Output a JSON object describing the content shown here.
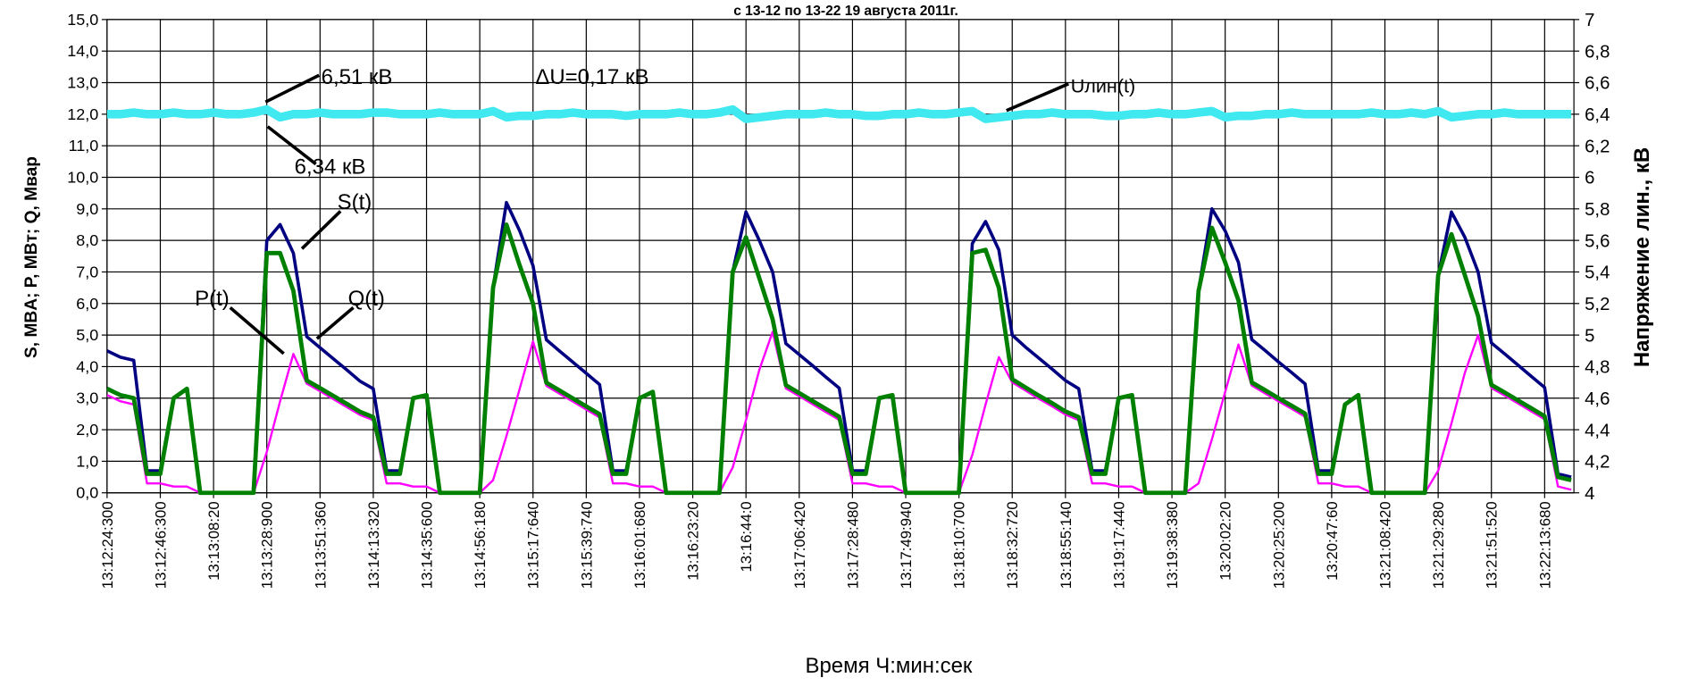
{
  "chart_data": {
    "type": "line",
    "title": "с 13-12 по 13-22 19 августа  2011г.",
    "xlabel": "Время Ч:мин:сек",
    "ylabel": "S, MBA;  P, MBт; Q, Mвар",
    "y2label": "Напряжение лин., кВ",
    "annotations": [
      "6,51 кВ",
      "6,34 кВ",
      "ΔU=0,17 кВ",
      "Uлин(t)",
      "S(t)",
      "P(t)",
      "Q(t)"
    ],
    "grid": true,
    "categories": [
      "13:12:24:300",
      null,
      null,
      null,
      "13:12:46:300",
      null,
      null,
      null,
      "13:13:08:20",
      null,
      null,
      null,
      "13:13:28:900",
      null,
      null,
      null,
      "13:13:51:360",
      null,
      null,
      null,
      "13:14:13:320",
      null,
      null,
      null,
      "13:14:35:600",
      null,
      null,
      null,
      "13:14:56:180",
      null,
      null,
      null,
      "13:15:17:640",
      null,
      null,
      null,
      "13:15:39:740",
      null,
      null,
      null,
      "13:16:01:680",
      null,
      null,
      null,
      "13:16:23:20",
      null,
      null,
      null,
      "13:16:44:0",
      null,
      null,
      null,
      "13:17:06:420",
      null,
      null,
      null,
      "13:17:28:480",
      null,
      null,
      null,
      "13:17:49:940",
      null,
      null,
      null,
      "13:18:10:700",
      null,
      null,
      null,
      "13:18:32:720",
      null,
      null,
      null,
      "13:18:55:140",
      null,
      null,
      null,
      "13:19:17:440",
      null,
      null,
      null,
      "13:19:38:380",
      null,
      null,
      null,
      "13:20:02:20",
      null,
      null,
      null,
      "13:20:25:200",
      null,
      null,
      null,
      "13:20:47:60",
      null,
      null,
      null,
      "13:21:08:420",
      null,
      null,
      null,
      "13:21:29:280",
      null,
      null,
      null,
      "13:21:51:520",
      null,
      null,
      null,
      "13:22:13:680",
      null,
      null
    ],
    "ylim": [
      0,
      15
    ],
    "yticks": [
      {
        "value": 0,
        "label": "0,0"
      },
      {
        "value": 1,
        "label": "1,0"
      },
      {
        "value": 2,
        "label": "2,0"
      },
      {
        "value": 3,
        "label": "3,0"
      },
      {
        "value": 4,
        "label": "4,0"
      },
      {
        "value": 5,
        "label": "5,0"
      },
      {
        "value": 6,
        "label": "6,0"
      },
      {
        "value": 7,
        "label": "7,0"
      },
      {
        "value": 8,
        "label": "8,0"
      },
      {
        "value": 9,
        "label": "9,0"
      },
      {
        "value": 10,
        "label": "10,0"
      },
      {
        "value": 11,
        "label": "11,0"
      },
      {
        "value": 12,
        "label": "12,0"
      },
      {
        "value": 13,
        "label": "13,0"
      },
      {
        "value": 14,
        "label": "14,0"
      },
      {
        "value": 15,
        "label": "15,0"
      }
    ],
    "y2lim": [
      4,
      7
    ],
    "y2ticks": [
      4,
      {
        "value": 4.2,
        "label": "4,2"
      },
      {
        "value": 4.4,
        "label": "4,4"
      },
      {
        "value": 4.6,
        "label": "4,6"
      },
      {
        "value": 4.8,
        "label": "4,8"
      },
      5,
      {
        "value": 5.2,
        "label": "5,2"
      },
      {
        "value": 5.4,
        "label": "5,4"
      },
      {
        "value": 5.6,
        "label": "5,6"
      },
      {
        "value": 5.8,
        "label": "5,8"
      },
      6,
      {
        "value": 6.2,
        "label": "6,2"
      },
      {
        "value": 6.4,
        "label": "6,4"
      },
      {
        "value": 6.6,
        "label": "6,6"
      },
      {
        "value": 6.8,
        "label": "6,8"
      },
      7
    ],
    "series": [
      {
        "name": "S(t)",
        "color": "#000080",
        "width": 3,
        "values": [
          4.5,
          4.3,
          4.2,
          0.7,
          0.7,
          3.0,
          3.3,
          0,
          0,
          0,
          0,
          0,
          8.0,
          8.5,
          7.6,
          4.95,
          4.6,
          4.25,
          3.9,
          3.54,
          3.3,
          0.7,
          0.7,
          3.0,
          3.1,
          0,
          0,
          0,
          0,
          6.5,
          9.2,
          8.3,
          7.2,
          4.85,
          4.49,
          4.14,
          3.79,
          3.43,
          0.7,
          0.7,
          3.0,
          3.2,
          0,
          0,
          0,
          0,
          0,
          7.0,
          8.9,
          8.0,
          7.0,
          4.73,
          4.38,
          4.03,
          3.67,
          3.32,
          0.7,
          0.7,
          3.0,
          3.1,
          0,
          0,
          0,
          0,
          0,
          7.9,
          8.6,
          7.7,
          5.0,
          4.62,
          4.27,
          3.92,
          3.56,
          3.3,
          0.7,
          0.7,
          3.0,
          3.1,
          0,
          0,
          0,
          0,
          6.4,
          9.0,
          8.3,
          7.3,
          4.86,
          4.51,
          4.15,
          3.81,
          3.45,
          0.7,
          0.7,
          2.8,
          3.1,
          0,
          0,
          0,
          0,
          0,
          6.9,
          8.9,
          8.1,
          7.0,
          4.75,
          4.4,
          4.05,
          3.69,
          3.34,
          0.6,
          0.5
        ]
      },
      {
        "name": "P(t)",
        "color": "#ff00ff",
        "width": 2,
        "values": [
          3.1,
          2.9,
          2.8,
          0.3,
          0.3,
          0.2,
          0.2,
          0,
          0,
          0,
          0,
          0,
          1.3,
          2.9,
          4.4,
          3.46,
          3.22,
          2.97,
          2.72,
          2.47,
          2.3,
          0.3,
          0.3,
          0.2,
          0.2,
          0,
          0,
          0,
          0,
          0.4,
          1.8,
          3.3,
          4.8,
          3.39,
          3.14,
          2.89,
          2.64,
          2.39,
          0.3,
          0.3,
          0.2,
          0.2,
          0,
          0,
          0,
          0,
          0,
          0.8,
          2.3,
          3.9,
          5.1,
          3.31,
          3.06,
          2.81,
          2.56,
          2.31,
          0.3,
          0.3,
          0.2,
          0.2,
          0,
          0,
          0,
          0,
          0,
          1.2,
          2.8,
          4.3,
          3.5,
          3.24,
          2.98,
          2.74,
          2.48,
          2.3,
          0.3,
          0.3,
          0.2,
          0.2,
          0,
          0,
          0,
          0,
          0.3,
          1.7,
          3.2,
          4.7,
          3.4,
          3.15,
          2.9,
          2.66,
          2.41,
          0.3,
          0.3,
          0.2,
          0.2,
          0,
          0,
          0,
          0,
          0,
          0.7,
          2.2,
          3.8,
          5.0,
          3.32,
          3.08,
          2.83,
          2.58,
          2.33,
          0.2,
          0.1
        ]
      },
      {
        "name": "Q(t)",
        "color": "#008000",
        "width": 4,
        "values": [
          3.3,
          3.1,
          3.0,
          0.6,
          0.6,
          3.0,
          3.3,
          0,
          0,
          0,
          0,
          0,
          7.6,
          7.6,
          6.4,
          3.56,
          3.32,
          3.07,
          2.82,
          2.57,
          2.4,
          0.6,
          0.6,
          3.0,
          3.1,
          0,
          0,
          0,
          0,
          6.5,
          8.5,
          7.2,
          6.0,
          3.49,
          3.24,
          2.99,
          2.74,
          2.49,
          0.6,
          0.6,
          3.0,
          3.2,
          0,
          0,
          0,
          0,
          0,
          7.0,
          8.1,
          6.8,
          5.5,
          3.41,
          3.16,
          2.91,
          2.66,
          2.41,
          0.6,
          0.6,
          3.0,
          3.1,
          0,
          0,
          0,
          0,
          0,
          7.6,
          7.7,
          6.5,
          3.6,
          3.34,
          3.08,
          2.84,
          2.58,
          2.4,
          0.6,
          0.6,
          3.0,
          3.1,
          0,
          0,
          0,
          0,
          6.4,
          8.4,
          7.3,
          6.1,
          3.5,
          3.25,
          3.0,
          2.76,
          2.51,
          0.6,
          0.6,
          2.8,
          3.1,
          0,
          0,
          0,
          0,
          0,
          6.9,
          8.2,
          6.9,
          5.6,
          3.42,
          3.18,
          2.93,
          2.68,
          2.43,
          0.5,
          0.4
        ]
      },
      {
        "name": "Uлин(t)",
        "color": "#40e8f0",
        "width": 8,
        "axis": "y2",
        "values": [
          6.4,
          6.4,
          6.41,
          6.4,
          6.4,
          6.41,
          6.4,
          6.4,
          6.41,
          6.4,
          6.4,
          6.41,
          6.43,
          6.38,
          6.4,
          6.4,
          6.41,
          6.4,
          6.4,
          6.4,
          6.41,
          6.41,
          6.4,
          6.4,
          6.4,
          6.41,
          6.4,
          6.4,
          6.4,
          6.42,
          6.38,
          6.39,
          6.39,
          6.4,
          6.4,
          6.41,
          6.4,
          6.4,
          6.4,
          6.39,
          6.4,
          6.4,
          6.4,
          6.41,
          6.4,
          6.4,
          6.41,
          6.43,
          6.37,
          6.38,
          6.39,
          6.4,
          6.4,
          6.4,
          6.41,
          6.4,
          6.4,
          6.39,
          6.39,
          6.4,
          6.4,
          6.41,
          6.4,
          6.4,
          6.41,
          6.42,
          6.37,
          6.38,
          6.39,
          6.4,
          6.4,
          6.41,
          6.4,
          6.4,
          6.4,
          6.39,
          6.39,
          6.4,
          6.4,
          6.41,
          6.4,
          6.4,
          6.41,
          6.42,
          6.38,
          6.39,
          6.39,
          6.4,
          6.4,
          6.41,
          6.4,
          6.4,
          6.4,
          6.4,
          6.4,
          6.41,
          6.4,
          6.4,
          6.41,
          6.4,
          6.42,
          6.38,
          6.39,
          6.4,
          6.4,
          6.41,
          6.4,
          6.4,
          6.4,
          6.4,
          6.4
        ]
      }
    ]
  }
}
